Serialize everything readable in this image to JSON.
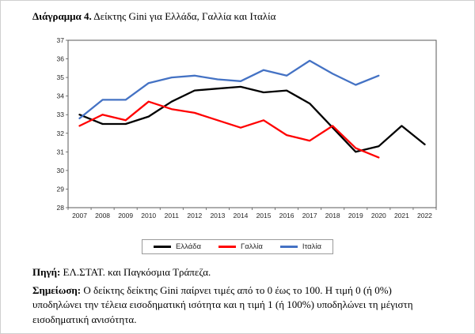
{
  "title": {
    "prefix": "Διάγραμμα 4.",
    "text": " Δείκτης Gini για Ελλάδα, Γαλλία και Ιταλία"
  },
  "chart_data": {
    "type": "line",
    "x": [
      2007,
      2008,
      2009,
      2010,
      2011,
      2012,
      2013,
      2014,
      2015,
      2016,
      2017,
      2018,
      2019,
      2020,
      2021,
      2022
    ],
    "series": [
      {
        "name": "Ελλάδα",
        "color": "#000000",
        "values": [
          33.0,
          32.5,
          32.5,
          32.9,
          33.7,
          34.3,
          34.4,
          34.5,
          34.2,
          34.3,
          33.6,
          32.3,
          31.0,
          31.3,
          32.4,
          31.4
        ]
      },
      {
        "name": "Γαλλία",
        "color": "#FF0000",
        "values": [
          32.4,
          33.0,
          32.7,
          33.7,
          33.3,
          33.1,
          32.7,
          32.3,
          32.7,
          31.9,
          31.6,
          32.4,
          31.2,
          30.7,
          null,
          null
        ]
      },
      {
        "name": "Ιταλία",
        "color": "#4472C4",
        "values": [
          32.8,
          33.8,
          33.8,
          34.7,
          35.0,
          35.1,
          34.9,
          34.8,
          35.4,
          35.1,
          35.9,
          35.2,
          34.6,
          35.1,
          null,
          null
        ]
      }
    ],
    "ylim": [
      28,
      37
    ],
    "ytick_step": 1,
    "grid": false,
    "legend_position": "bottom"
  },
  "source": {
    "label": "Πηγή:",
    "text": " ΕΛ.ΣΤΑΤ. και Παγκόσμια Τράπεζα."
  },
  "note": {
    "label": "Σημείωση:",
    "text": " Ο δείκτης δείκτης Gini παίρνει τιμές από το 0 έως το 100. Η τιμή 0 (ή 0%) υποδηλώνει την τέλεια εισοδηματική ισότητα  και η τιμή 1 (ή 100%) υποδηλώνει τη μέγιστη εισοδηματική ανισότητα."
  }
}
